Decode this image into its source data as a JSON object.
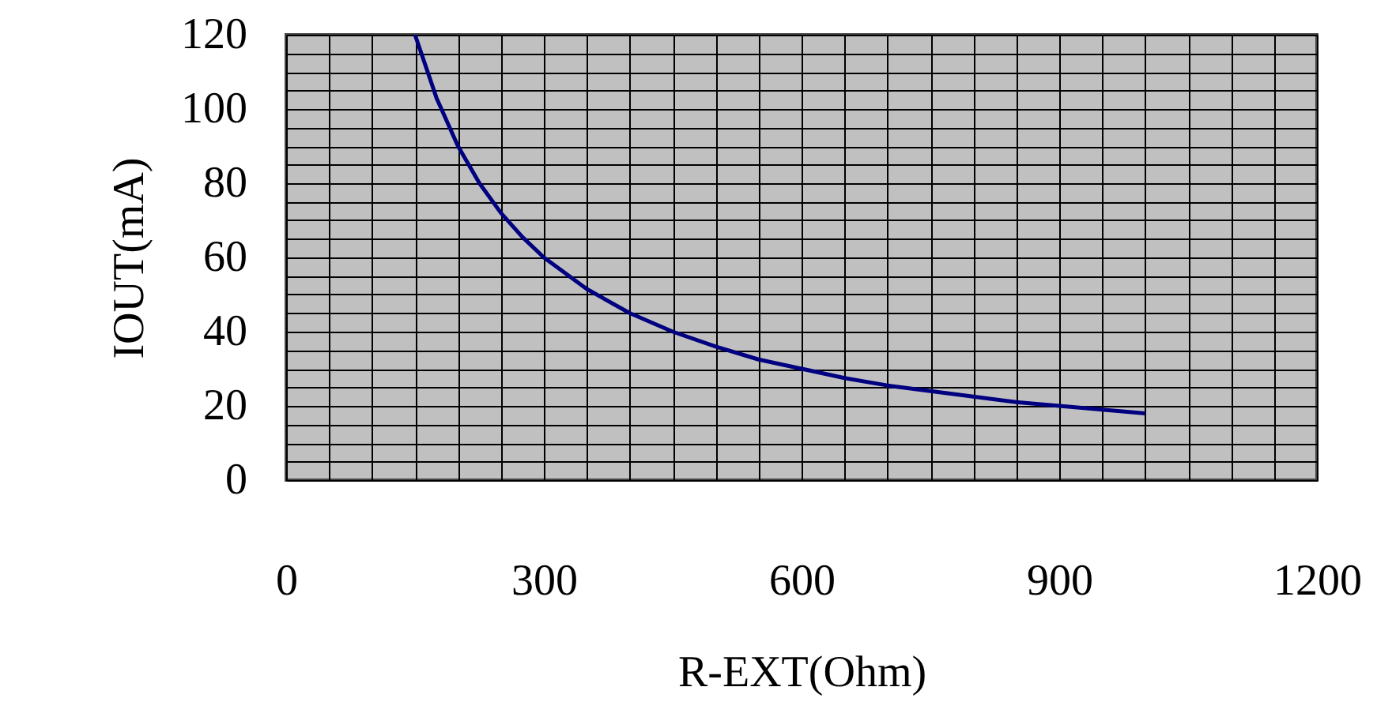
{
  "chart_data": {
    "type": "line",
    "xlabel": "R-EXT(Ohm)",
    "ylabel": "IOUT(mA)",
    "x": [
      150,
      175,
      200,
      225,
      250,
      275,
      300,
      350,
      400,
      450,
      500,
      550,
      600,
      650,
      700,
      750,
      800,
      850,
      900,
      950,
      1000
    ],
    "series": [
      {
        "color": "#000080",
        "values": [
          120,
          103,
          90,
          80,
          72,
          65.5,
          60,
          51.5,
          45,
          40,
          36,
          32.5,
          30,
          27.5,
          25.5,
          24,
          22.5,
          21,
          20,
          19,
          18
        ]
      }
    ],
    "xlim": [
      0,
      1200
    ],
    "ylim": [
      0,
      120
    ],
    "xticks": [
      0,
      {
        "value": 50,
        "label": null
      },
      {
        "value": 100,
        "label": null
      },
      {
        "value": 150,
        "label": null
      },
      {
        "value": 200,
        "label": null
      },
      {
        "value": 250,
        "label": null
      },
      300,
      {
        "value": 350,
        "label": null
      },
      {
        "value": 400,
        "label": null
      },
      {
        "value": 450,
        "label": null
      },
      {
        "value": 500,
        "label": null
      },
      {
        "value": 550,
        "label": null
      },
      600,
      {
        "value": 650,
        "label": null
      },
      {
        "value": 700,
        "label": null
      },
      {
        "value": 750,
        "label": null
      },
      {
        "value": 800,
        "label": null
      },
      {
        "value": 850,
        "label": null
      },
      900,
      {
        "value": 950,
        "label": null
      },
      {
        "value": 1000,
        "label": null
      },
      {
        "value": 1050,
        "label": null
      },
      {
        "value": 1100,
        "label": null
      },
      {
        "value": 1150,
        "label": null
      },
      1200
    ],
    "yticks": [
      0,
      {
        "value": 5,
        "label": null
      },
      {
        "value": 10,
        "label": null
      },
      {
        "value": 15,
        "label": null
      },
      20,
      {
        "value": 25,
        "label": null
      },
      {
        "value": 30,
        "label": null
      },
      {
        "value": 35,
        "label": null
      },
      40,
      {
        "value": 45,
        "label": null
      },
      {
        "value": 50,
        "label": null
      },
      {
        "value": 55,
        "label": null
      },
      60,
      {
        "value": 65,
        "label": null
      },
      {
        "value": 70,
        "label": null
      },
      {
        "value": 75,
        "label": null
      },
      80,
      {
        "value": 85,
        "label": null
      },
      {
        "value": 90,
        "label": null
      },
      {
        "value": 95,
        "label": null
      },
      100,
      {
        "value": 105,
        "label": null
      },
      {
        "value": 110,
        "label": null
      },
      {
        "value": 115,
        "label": null
      },
      120
    ],
    "grid": true,
    "marker": "none",
    "line_style": "solid"
  }
}
